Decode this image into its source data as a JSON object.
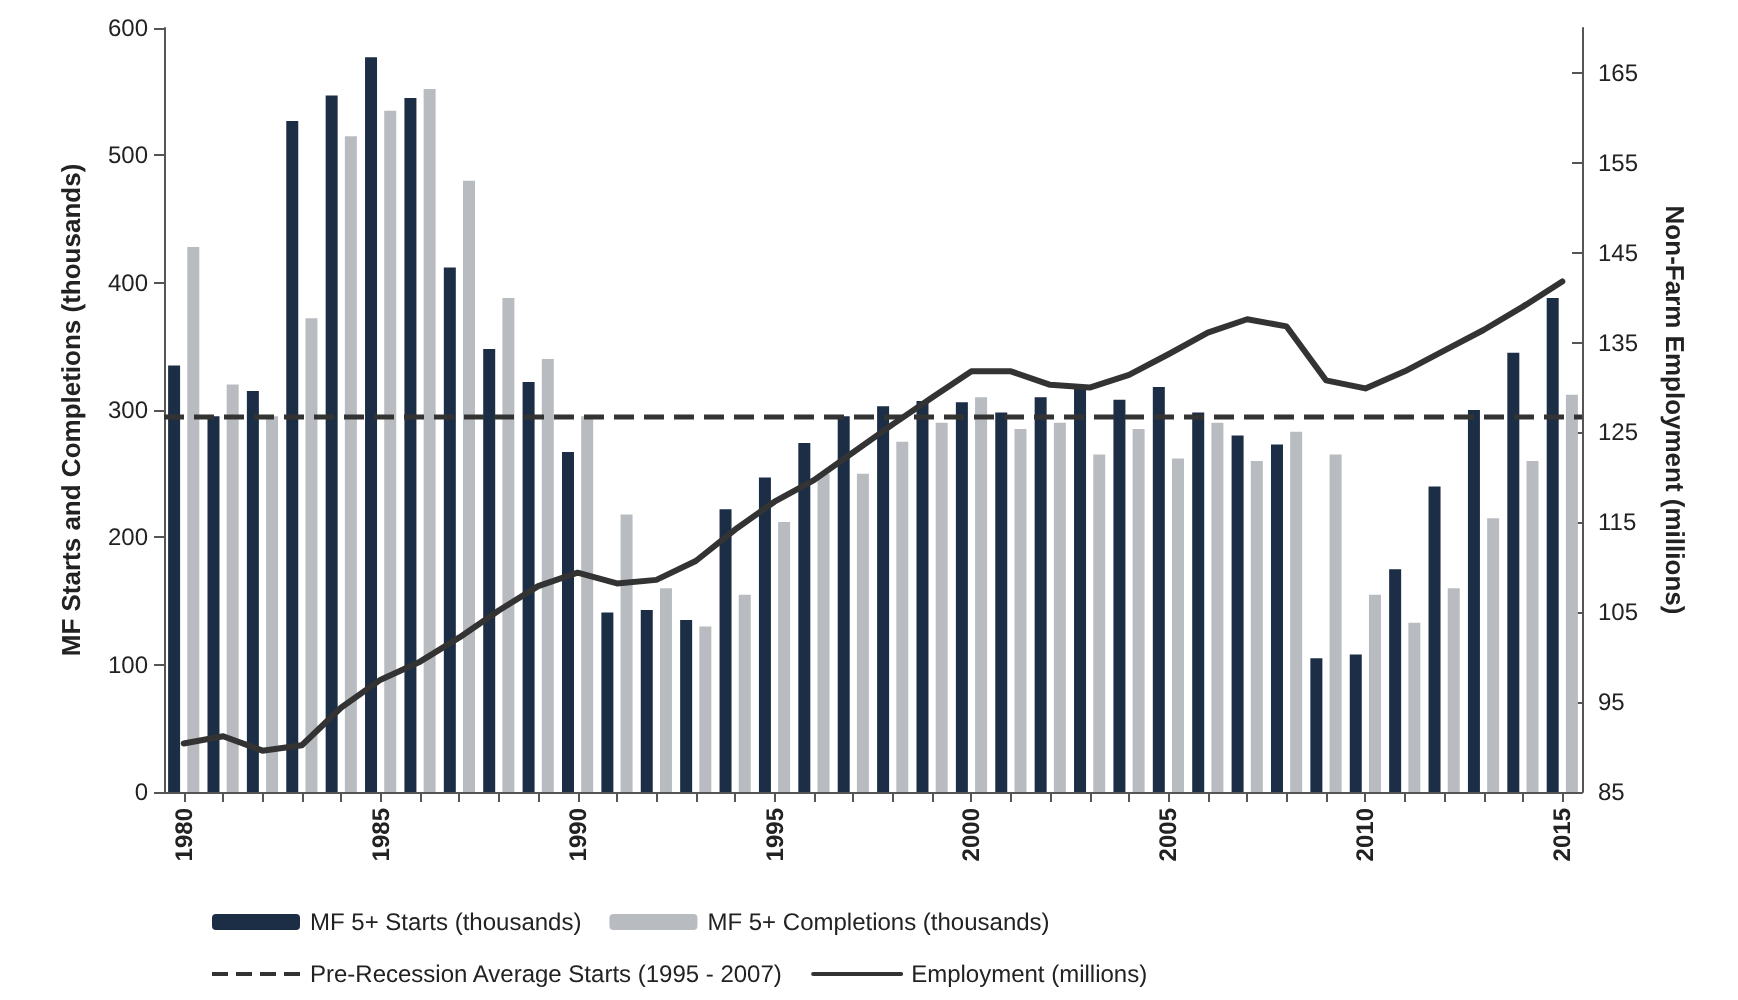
{
  "chart_data": {
    "type": "bar",
    "ylabel": "MF Starts and Completions (thousands)",
    "y2label": "Non-Farm Employment (millions)",
    "categories": [
      "1980",
      null,
      null,
      null,
      null,
      "1985",
      null,
      null,
      null,
      null,
      "1990",
      null,
      null,
      null,
      null,
      "1995",
      null,
      null,
      null,
      null,
      "2000",
      null,
      null,
      null,
      null,
      "2005",
      null,
      null,
      null,
      null,
      "2010",
      null,
      null,
      null,
      null,
      "2015"
    ],
    "series": [
      {
        "name": "MF 5+ Starts (thousands)",
        "color": "#1c2e45",
        "values": [
          335,
          295,
          315,
          527,
          547,
          577,
          545,
          412,
          348,
          322,
          267,
          141,
          143,
          135,
          222,
          247,
          274,
          295,
          303,
          307,
          306,
          298,
          310,
          318,
          308,
          318,
          298,
          280,
          273,
          105,
          108,
          175,
          240,
          300,
          345,
          388
        ]
      },
      {
        "name": "MF 5+ Completions (thousands)",
        "color": "#b8bcc0",
        "values": [
          428,
          320,
          295,
          372,
          515,
          535,
          552,
          480,
          388,
          340,
          295,
          218,
          160,
          130,
          155,
          212,
          250,
          250,
          275,
          290,
          310,
          285,
          290,
          265,
          285,
          262,
          290,
          260,
          283,
          265,
          155,
          133,
          160,
          215,
          260,
          312
        ]
      },
      {
        "name": "Employment (millions)",
        "type": "line",
        "axis": "y2",
        "color": "#333333",
        "line_style": "solid",
        "marker": "none",
        "values": [
          90.4,
          91.2,
          89.6,
          90.2,
          94.4,
          97.5,
          99.5,
          102.2,
          105.2,
          107.9,
          109.4,
          108.2,
          108.6,
          110.7,
          114.2,
          117.3,
          119.7,
          122.8,
          125.9,
          128.9,
          131.8,
          131.8,
          130.3,
          130.0,
          131.4,
          133.7,
          136.1,
          137.6,
          136.8,
          130.8,
          129.9,
          131.8,
          134.1,
          136.4,
          139.0,
          141.8
        ]
      }
    ],
    "ref_lines": [
      {
        "axis": "y",
        "value": 295,
        "label": "Pre-Recession Average Starts (1995 - 2007)",
        "color": "#333333",
        "line_style": "dashed"
      }
    ],
    "ylim": [
      0,
      600
    ],
    "yticks": [
      0,
      100,
      200,
      300,
      400,
      500,
      600
    ],
    "y2lim": [
      85,
      170
    ],
    "y2ticks": [
      85,
      95,
      105,
      115,
      125,
      135,
      145,
      155,
      165
    ],
    "grid": false,
    "legend": "bottom"
  }
}
